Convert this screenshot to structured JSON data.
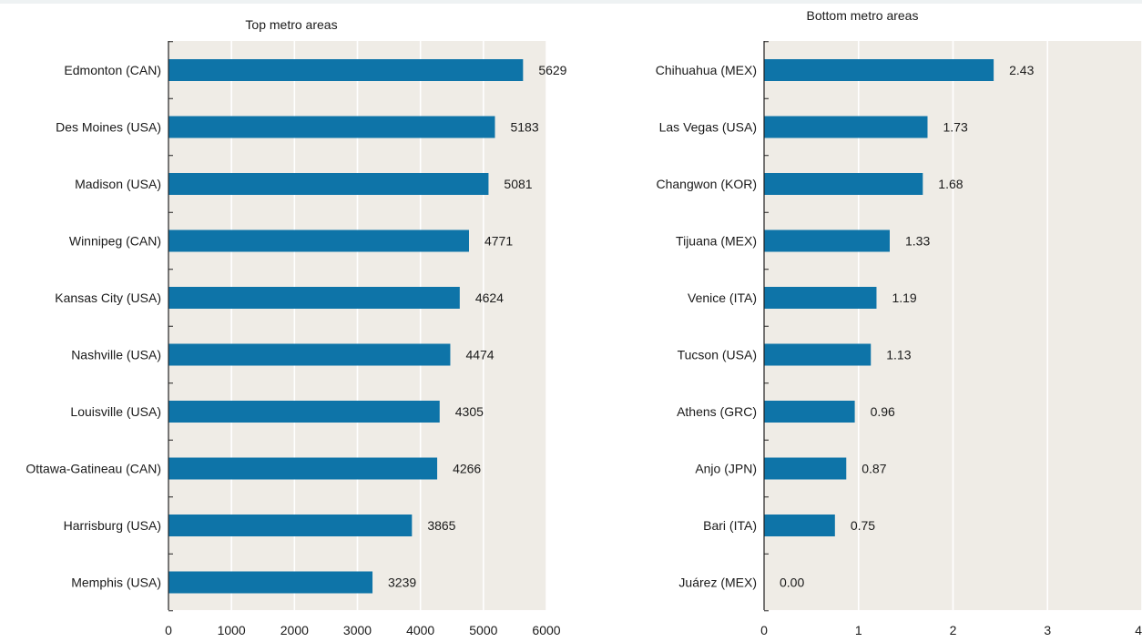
{
  "chart_data": [
    {
      "type": "bar",
      "orientation": "horizontal",
      "title": "Top metro areas",
      "categories": [
        "Edmonton (CAN)",
        "Des Moines (USA)",
        "Madison (USA)",
        "Winnipeg (CAN)",
        "Kansas City (USA)",
        "Nashville (USA)",
        "Louisville (USA)",
        "Ottawa-Gatineau (CAN)",
        "Harrisburg (USA)",
        "Memphis (USA)"
      ],
      "values": [
        5629,
        5183,
        5081,
        4771,
        4624,
        4474,
        4305,
        4266,
        3865,
        3239
      ],
      "value_labels": [
        "5629",
        "5183",
        "5081",
        "4771",
        "4624",
        "4474",
        "4305",
        "4266",
        "3865",
        "3239"
      ],
      "xlim": [
        0,
        6000
      ],
      "xticks": [
        0,
        1000,
        2000,
        3000,
        4000,
        5000,
        6000
      ],
      "xtick_labels": [
        "0",
        "1000",
        "2000",
        "3000",
        "4000",
        "5000",
        "6000"
      ],
      "grid": true,
      "bar_color": "#0e74a8",
      "plot_background": "#efece6"
    },
    {
      "type": "bar",
      "orientation": "horizontal",
      "title": "Bottom metro areas",
      "categories": [
        "Chihuahua (MEX)",
        "Las Vegas (USA)",
        "Changwon (KOR)",
        "Tijuana (MEX)",
        "Venice (ITA)",
        "Tucson (USA)",
        "Athens (GRC)",
        "Anjo (JPN)",
        "Bari (ITA)",
        "Juárez (MEX)"
      ],
      "values": [
        2.43,
        1.73,
        1.68,
        1.33,
        1.19,
        1.13,
        0.96,
        0.87,
        0.75,
        0.0
      ],
      "value_labels": [
        "2.43",
        "1.73",
        "1.68",
        "1.33",
        "1.19",
        "1.13",
        "0.96",
        "0.87",
        "0.75",
        "0.00"
      ],
      "xlim": [
        0,
        4
      ],
      "xticks": [
        0,
        1,
        2,
        3,
        4
      ],
      "xtick_labels": [
        "0",
        "1",
        "2",
        "3",
        "4"
      ],
      "grid": true,
      "bar_color": "#0e74a8",
      "plot_background": "#efece6"
    }
  ]
}
